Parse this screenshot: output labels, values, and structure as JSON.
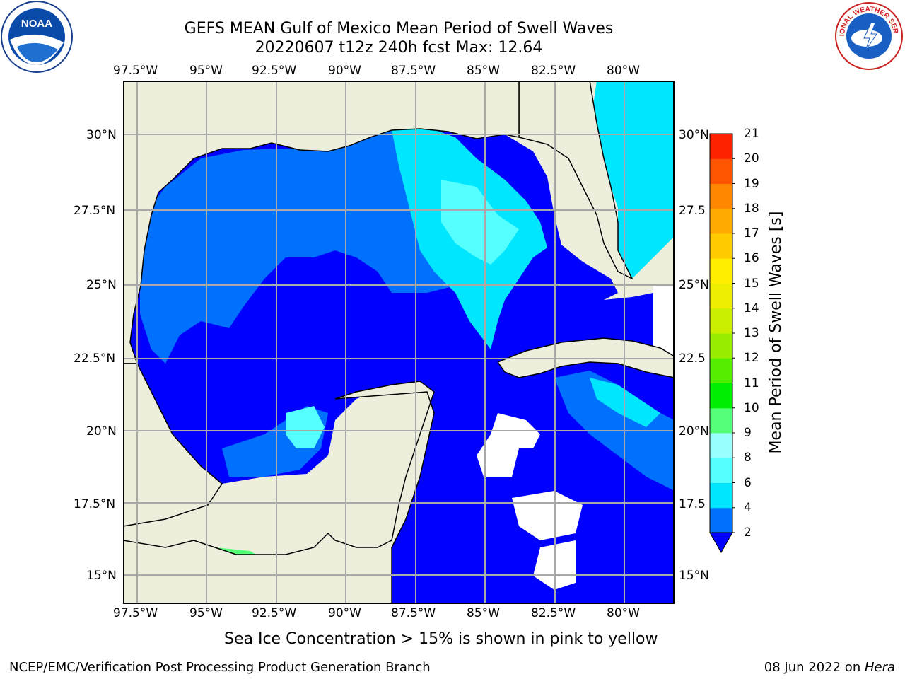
{
  "title": {
    "line1": "GEFS MEAN Gulf of Mexico Mean Period of Swell Waves",
    "line2": "20220607 t12z 240h fcst   Max: 12.64"
  },
  "logos": {
    "left": {
      "icon": "noaa-logo",
      "text": "NOAA"
    },
    "right": {
      "icon": "national-weather-service-logo",
      "text": "NATIONAL WEATHER SERVICE"
    }
  },
  "map": {
    "lon_labels": [
      "97.5°W",
      "95°W",
      "92.5°W",
      "90°W",
      "87.5°W",
      "85°W",
      "82.5°W",
      "80°W"
    ],
    "lat_labels_left": [
      "30°N",
      "27.5°N",
      "25°N",
      "22.5°N",
      "20°N",
      "17.5°N",
      "15°N"
    ],
    "lat_labels_right": [
      "30°N",
      "27.5",
      "25°N",
      "22.5",
      "20°N",
      "17.5",
      "15°N"
    ],
    "colors": {
      "land": "#eeeedd",
      "no_data": "#ffffff",
      "grid": "#a9a9a9",
      "coastline": "#000000"
    }
  },
  "colorbar": {
    "label": "Mean Period of Swell Waves [s]",
    "ticks": [
      "2",
      "4",
      "6",
      "8",
      "9",
      "10",
      "11",
      "12",
      "13",
      "14",
      "15",
      "16",
      "17",
      "18",
      "19",
      "20",
      "21"
    ],
    "colors": [
      "#0000ff",
      "#0070ff",
      "#00e6ff",
      "#55ffff",
      "#99ffff",
      "#55ff77",
      "#00ee00",
      "#55ee00",
      "#99ee00",
      "#ccee00",
      "#eeee00",
      "#ffee00",
      "#ffcc00",
      "#ffaa00",
      "#ff8800",
      "#ff5500",
      "#ff2200",
      "#ff0000"
    ]
  },
  "note": "Sea Ice Concentration > 15% is shown in pink to yellow",
  "footer": {
    "left": "NCEP/EMC/Verification Post Processing Product Generation Branch",
    "right_date": "08 Jun 2022 on ",
    "right_machine": "Hera"
  }
}
